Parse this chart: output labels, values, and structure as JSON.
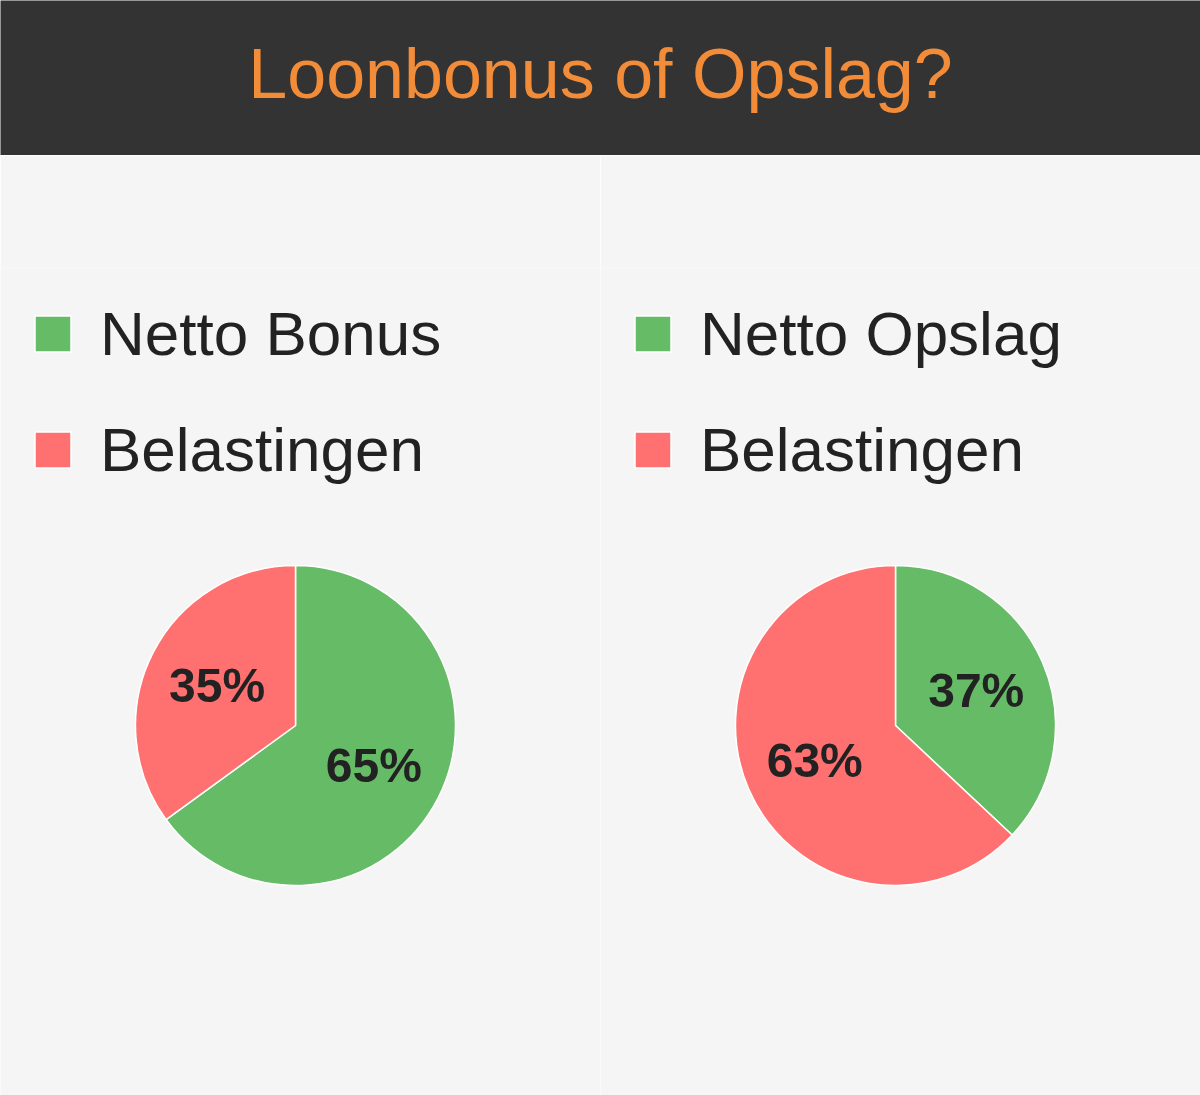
{
  "chart_data": [
    {
      "type": "pie",
      "title": "Loonbonus of Opslag?",
      "categories": [
        "Netto Bonus",
        "Belastingen"
      ],
      "values": [
        65,
        35
      ],
      "colors": [
        "#66bb66",
        "#ff7070"
      ],
      "value_labels": [
        "65%",
        "35%"
      ],
      "legend": "top left"
    },
    {
      "type": "pie",
      "categories": [
        "Netto Opslag",
        "Belastingen"
      ],
      "values": [
        37,
        63
      ],
      "colors": [
        "#66bb66",
        "#ff7070"
      ],
      "value_labels": [
        "37%",
        "63%"
      ],
      "legend": "top left"
    }
  ]
}
